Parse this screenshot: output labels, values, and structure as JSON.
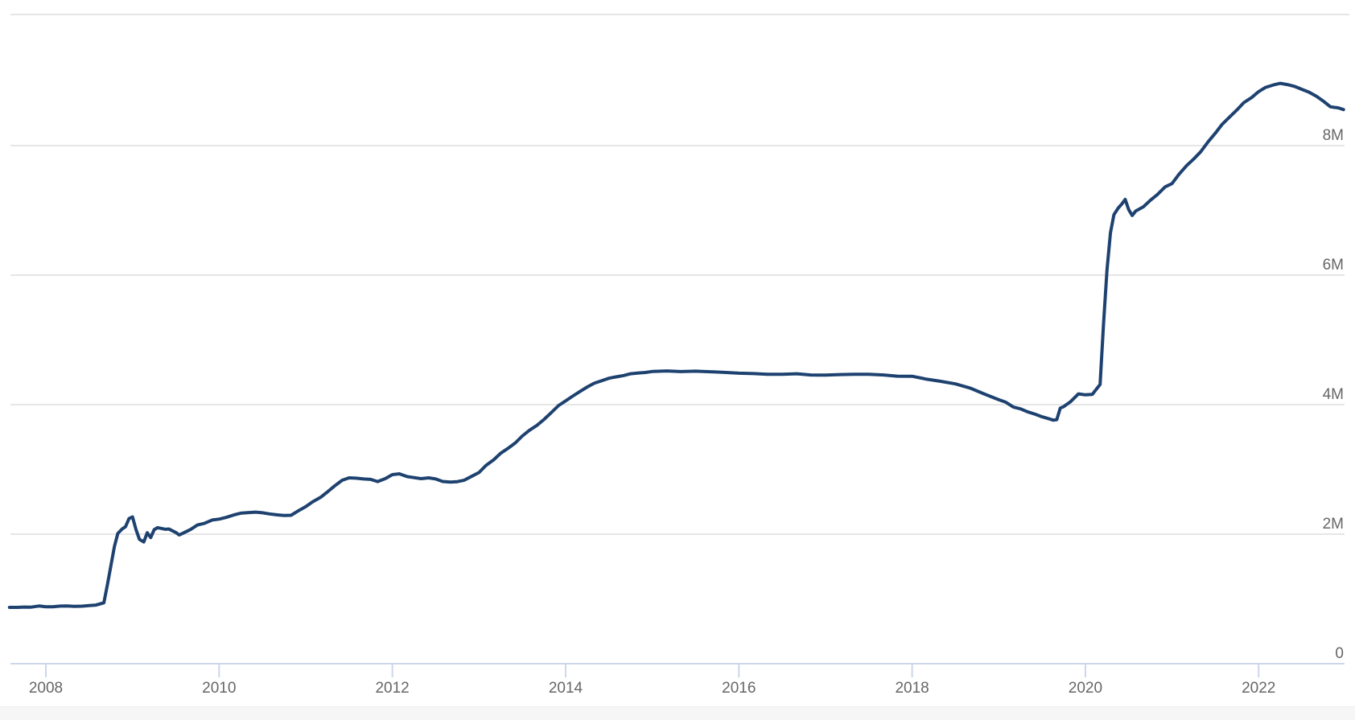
{
  "chart": {
    "background_color": "#ffffff",
    "top_divider_color": "#e5e5e5",
    "footer_band_color": "#f6f6f6",
    "gridline_color": "#e6e6e6",
    "axis_line_color": "#ccd6eb",
    "tick_color": "#ccd6eb",
    "label_color": "#666666",
    "line_color": "#1e4270"
  },
  "chart_data": {
    "type": "line",
    "title": "",
    "xlabel": "",
    "ylabel": "",
    "legend": "none",
    "grid": "horizontal",
    "y_axis_side": "right",
    "xlim": [
      2007.58,
      2022.98
    ],
    "ylim": [
      0,
      10000000
    ],
    "x_ticks": [
      {
        "value": 2008,
        "label": "2008"
      },
      {
        "value": 2010,
        "label": "2010"
      },
      {
        "value": 2012,
        "label": "2012"
      },
      {
        "value": 2014,
        "label": "2014"
      },
      {
        "value": 2016,
        "label": "2016"
      },
      {
        "value": 2018,
        "label": "2018"
      },
      {
        "value": 2020,
        "label": "2020"
      },
      {
        "value": 2022,
        "label": "2022"
      }
    ],
    "y_ticks": [
      {
        "value": 0,
        "label": "0"
      },
      {
        "value": 2000000,
        "label": "2M"
      },
      {
        "value": 4000000,
        "label": "4M"
      },
      {
        "value": 6000000,
        "label": "6M"
      },
      {
        "value": 8000000,
        "label": "8M"
      }
    ],
    "series": [
      {
        "name": "",
        "color": "#1e4270",
        "points": [
          [
            2007.58,
            869000
          ],
          [
            2007.67,
            870000
          ],
          [
            2007.75,
            874000
          ],
          [
            2007.83,
            873000
          ],
          [
            2007.92,
            891000
          ],
          [
            2008.0,
            879000
          ],
          [
            2008.08,
            880000
          ],
          [
            2008.17,
            889000
          ],
          [
            2008.25,
            891000
          ],
          [
            2008.33,
            886000
          ],
          [
            2008.42,
            888000
          ],
          [
            2008.5,
            898000
          ],
          [
            2008.58,
            905000
          ],
          [
            2008.67,
            940000
          ],
          [
            2008.71,
            1214000
          ],
          [
            2008.75,
            1504000
          ],
          [
            2008.79,
            1804000
          ],
          [
            2008.83,
            2011000
          ],
          [
            2008.88,
            2079000
          ],
          [
            2008.92,
            2115000
          ],
          [
            2008.96,
            2241000
          ],
          [
            2009.0,
            2266000
          ],
          [
            2009.04,
            2072000
          ],
          [
            2009.08,
            1920000
          ],
          [
            2009.13,
            1880000
          ],
          [
            2009.17,
            2022000
          ],
          [
            2009.21,
            1948000
          ],
          [
            2009.25,
            2069000
          ],
          [
            2009.29,
            2101000
          ],
          [
            2009.33,
            2089000
          ],
          [
            2009.38,
            2076000
          ],
          [
            2009.42,
            2080000
          ],
          [
            2009.5,
            2026000
          ],
          [
            2009.54,
            1988000
          ],
          [
            2009.58,
            2014000
          ],
          [
            2009.67,
            2072000
          ],
          [
            2009.75,
            2141000
          ],
          [
            2009.83,
            2167000
          ],
          [
            2009.92,
            2219000
          ],
          [
            2010.0,
            2232000
          ],
          [
            2010.08,
            2258000
          ],
          [
            2010.17,
            2297000
          ],
          [
            2010.25,
            2324000
          ],
          [
            2010.33,
            2333000
          ],
          [
            2010.42,
            2340000
          ],
          [
            2010.5,
            2330000
          ],
          [
            2010.58,
            2313000
          ],
          [
            2010.67,
            2298000
          ],
          [
            2010.75,
            2288000
          ],
          [
            2010.83,
            2292000
          ],
          [
            2010.92,
            2365000
          ],
          [
            2011.0,
            2425000
          ],
          [
            2011.08,
            2501000
          ],
          [
            2011.17,
            2568000
          ],
          [
            2011.25,
            2652000
          ],
          [
            2011.33,
            2742000
          ],
          [
            2011.42,
            2832000
          ],
          [
            2011.5,
            2869000
          ],
          [
            2011.58,
            2864000
          ],
          [
            2011.67,
            2852000
          ],
          [
            2011.75,
            2846000
          ],
          [
            2011.83,
            2813000
          ],
          [
            2011.92,
            2858000
          ],
          [
            2012.0,
            2919000
          ],
          [
            2012.08,
            2932000
          ],
          [
            2012.17,
            2889000
          ],
          [
            2012.25,
            2873000
          ],
          [
            2012.33,
            2857000
          ],
          [
            2012.42,
            2870000
          ],
          [
            2012.5,
            2852000
          ],
          [
            2012.58,
            2814000
          ],
          [
            2012.67,
            2804000
          ],
          [
            2012.75,
            2811000
          ],
          [
            2012.83,
            2834000
          ],
          [
            2012.92,
            2897000
          ],
          [
            2013.0,
            2951000
          ],
          [
            2013.08,
            3061000
          ],
          [
            2013.17,
            3149000
          ],
          [
            2013.25,
            3250000
          ],
          [
            2013.33,
            3320000
          ],
          [
            2013.42,
            3410000
          ],
          [
            2013.5,
            3516000
          ],
          [
            2013.58,
            3601000
          ],
          [
            2013.67,
            3681000
          ],
          [
            2013.75,
            3770000
          ],
          [
            2013.83,
            3872000
          ],
          [
            2013.92,
            3988000
          ],
          [
            2014.0,
            4058000
          ],
          [
            2014.08,
            4131000
          ],
          [
            2014.17,
            4207000
          ],
          [
            2014.25,
            4273000
          ],
          [
            2014.33,
            4331000
          ],
          [
            2014.42,
            4372000
          ],
          [
            2014.5,
            4407000
          ],
          [
            2014.58,
            4429000
          ],
          [
            2014.67,
            4450000
          ],
          [
            2014.75,
            4477000
          ],
          [
            2014.83,
            4487000
          ],
          [
            2014.92,
            4497000
          ],
          [
            2015.0,
            4512000
          ],
          [
            2015.17,
            4520000
          ],
          [
            2015.33,
            4510000
          ],
          [
            2015.5,
            4517000
          ],
          [
            2015.67,
            4508000
          ],
          [
            2015.83,
            4498000
          ],
          [
            2016.0,
            4486000
          ],
          [
            2016.17,
            4479000
          ],
          [
            2016.33,
            4470000
          ],
          [
            2016.5,
            4468000
          ],
          [
            2016.67,
            4477000
          ],
          [
            2016.83,
            4459000
          ],
          [
            2017.0,
            4456000
          ],
          [
            2017.17,
            4465000
          ],
          [
            2017.33,
            4468000
          ],
          [
            2017.5,
            4470000
          ],
          [
            2017.67,
            4459000
          ],
          [
            2017.83,
            4440000
          ],
          [
            2018.0,
            4439000
          ],
          [
            2018.17,
            4393000
          ],
          [
            2018.33,
            4360000
          ],
          [
            2018.5,
            4320000
          ],
          [
            2018.67,
            4256000
          ],
          [
            2018.83,
            4166000
          ],
          [
            2019.0,
            4076000
          ],
          [
            2019.08,
            4039000
          ],
          [
            2019.17,
            3962000
          ],
          [
            2019.25,
            3936000
          ],
          [
            2019.33,
            3891000
          ],
          [
            2019.42,
            3852000
          ],
          [
            2019.5,
            3813000
          ],
          [
            2019.58,
            3781000
          ],
          [
            2019.63,
            3760000
          ],
          [
            2019.67,
            3769000
          ],
          [
            2019.71,
            3946000
          ],
          [
            2019.75,
            3970000
          ],
          [
            2019.83,
            4047000
          ],
          [
            2019.92,
            4166000
          ],
          [
            2020.0,
            4151000
          ],
          [
            2020.08,
            4159000
          ],
          [
            2020.17,
            4312000
          ],
          [
            2020.21,
            5254000
          ],
          [
            2020.25,
            6083000
          ],
          [
            2020.29,
            6656000
          ],
          [
            2020.33,
            6934000
          ],
          [
            2020.38,
            7037000
          ],
          [
            2020.42,
            7097000
          ],
          [
            2020.46,
            7169000
          ],
          [
            2020.5,
            7010000
          ],
          [
            2020.54,
            6921000
          ],
          [
            2020.58,
            6989000
          ],
          [
            2020.67,
            7056000
          ],
          [
            2020.75,
            7157000
          ],
          [
            2020.83,
            7243000
          ],
          [
            2020.92,
            7363000
          ],
          [
            2021.0,
            7414000
          ],
          [
            2021.08,
            7557000
          ],
          [
            2021.17,
            7693000
          ],
          [
            2021.25,
            7793000
          ],
          [
            2021.33,
            7903000
          ],
          [
            2021.42,
            8064000
          ],
          [
            2021.5,
            8191000
          ],
          [
            2021.58,
            8331000
          ],
          [
            2021.67,
            8448000
          ],
          [
            2021.75,
            8551000
          ],
          [
            2021.83,
            8664000
          ],
          [
            2021.92,
            8743000
          ],
          [
            2022.0,
            8834000
          ],
          [
            2022.08,
            8899000
          ],
          [
            2022.17,
            8937000
          ],
          [
            2022.25,
            8962000
          ],
          [
            2022.33,
            8943000
          ],
          [
            2022.42,
            8912000
          ],
          [
            2022.5,
            8868000
          ],
          [
            2022.58,
            8826000
          ],
          [
            2022.67,
            8759000
          ],
          [
            2022.75,
            8683000
          ],
          [
            2022.83,
            8599000
          ],
          [
            2022.92,
            8583000
          ],
          [
            2022.98,
            8556000
          ]
        ]
      }
    ]
  }
}
